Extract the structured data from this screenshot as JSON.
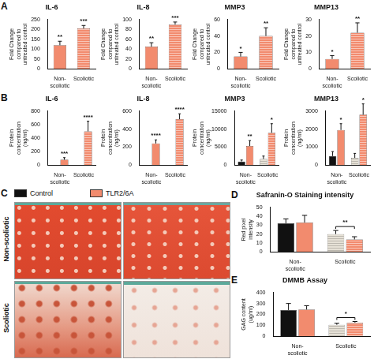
{
  "panel_labels": [
    "A",
    "B",
    "C",
    "D",
    "E"
  ],
  "chart_data": [
    {
      "type": "bar",
      "title": "IL-6",
      "y_label": "Fold Change compared to untreated control",
      "categories": [
        "Non-scoliotic",
        "Scoliotic"
      ],
      "values": [
        120,
        205
      ],
      "errors": [
        20,
        15
      ],
      "annotations": [
        "**",
        "***"
      ],
      "color": "#f28b6e",
      "ylim": [
        0,
        250
      ],
      "yticks": [
        0,
        50,
        100,
        150,
        200,
        250
      ],
      "grid": false
    },
    {
      "type": "bar",
      "title": "IL-8",
      "y_label": "Fold Change compared to untreated control",
      "categories": [
        "Non-scoliotic",
        "Scoliotic"
      ],
      "values": [
        45,
        90
      ],
      "errors": [
        8,
        5
      ],
      "annotations": [
        "**",
        "***"
      ],
      "color": "#f28b6e",
      "ylim": [
        0,
        100
      ],
      "yticks": [
        0,
        20,
        40,
        60,
        80,
        100
      ],
      "grid": false
    },
    {
      "type": "bar",
      "title": "MMP3",
      "y_label": "Fold Change compared to untreated control",
      "categories": [
        "Non-scoliotic",
        "Scoliotic"
      ],
      "values": [
        15,
        40
      ],
      "errors": [
        5,
        10
      ],
      "annotations": [
        "*",
        "**"
      ],
      "color": "#f28b6e",
      "ylim": [
        0,
        60
      ],
      "yticks": [
        0,
        20,
        40,
        60
      ],
      "grid": false
    },
    {
      "type": "bar",
      "title": "MMP13",
      "y_label": "Fold Change compared to untreated control",
      "categories": [
        "Non-scoliotic",
        "Scoliotic"
      ],
      "values": [
        6,
        22
      ],
      "errors": [
        2,
        6
      ],
      "annotations": [
        "*",
        "**"
      ],
      "color": "#f28b6e",
      "ylim": [
        0,
        30
      ],
      "yticks": [
        0,
        10,
        20,
        30
      ],
      "grid": false
    },
    {
      "type": "bar",
      "title": "IL-6",
      "y_label": "Protein concentration (ng/ml)",
      "categories": [
        "Non-scoliotic",
        "Scoliotic"
      ],
      "series": [
        {
          "name": "Control",
          "colors": [
            "#111111",
            "#e6e1d6"
          ],
          "values": [
            0,
            0
          ],
          "errors": [
            0,
            0
          ],
          "annotations": [
            null,
            null
          ]
        },
        {
          "name": "TLR2/6A",
          "colors": [
            "#f28b6e",
            "#f28b6e"
          ],
          "values": [
            80,
            500
          ],
          "errors": [
            30,
            150
          ],
          "annotations": [
            "***",
            "****"
          ]
        }
      ],
      "ylim": [
        0,
        800
      ],
      "yticks": [
        0,
        200,
        400,
        600,
        800
      ],
      "grid": false
    },
    {
      "type": "bar",
      "title": "IL-8",
      "y_label": "Protein concentration (ng/ml)",
      "categories": [
        "Non-scoliotic",
        "Scoliotic"
      ],
      "series": [
        {
          "name": "Control",
          "colors": [
            "#111111",
            "#e6e1d6"
          ],
          "values": [
            0,
            0
          ],
          "errors": [
            0,
            0
          ],
          "annotations": [
            null,
            null
          ]
        },
        {
          "name": "TLR2/6A",
          "colors": [
            "#f28b6e",
            "#f28b6e"
          ],
          "values": [
            240,
            510
          ],
          "errors": [
            40,
            60
          ],
          "annotations": [
            "****",
            "****"
          ]
        }
      ],
      "ylim": [
        0,
        600
      ],
      "yticks": [
        0,
        200,
        400,
        600
      ],
      "grid": false
    },
    {
      "type": "bar",
      "title": "MMP3",
      "y_label": "Protein concentration (ng/ml)",
      "categories": [
        "Non-scoliotic",
        "Scoliotic"
      ],
      "series": [
        {
          "name": "Control",
          "colors": [
            "#111111",
            "#e6e1d6"
          ],
          "values": [
            1000,
            1700
          ],
          "errors": [
            400,
            800
          ],
          "annotations": [
            null,
            null
          ]
        },
        {
          "name": "TLR2/6A",
          "colors": [
            "#f28b6e",
            "#f28b6e"
          ],
          "values": [
            5300,
            9000
          ],
          "errors": [
            1500,
            2500
          ],
          "annotations": [
            "**",
            "*"
          ]
        }
      ],
      "ylim": [
        0,
        15000
      ],
      "yticks": [
        0,
        5000,
        10000,
        15000
      ],
      "grid": false
    },
    {
      "type": "bar",
      "title": "MMP13",
      "y_label": "Protein concentration (ng/ml)",
      "categories": [
        "Non-scoliotic",
        "Scoliotic"
      ],
      "series": [
        {
          "name": "Control",
          "colors": [
            "#111111",
            "#e6e1d6"
          ],
          "values": [
            500,
            400
          ],
          "errors": [
            250,
            250
          ],
          "annotations": [
            null,
            null
          ]
        },
        {
          "name": "TLR2/6A",
          "colors": [
            "#f28b6e",
            "#f28b6e"
          ],
          "values": [
            1950,
            2800
          ],
          "errors": [
            350,
            600
          ],
          "annotations": [
            "*",
            "*"
          ]
        }
      ],
      "ylim": [
        0,
        3000
      ],
      "yticks": [
        0,
        1000,
        2000,
        3000
      ],
      "grid": false
    },
    {
      "type": "bar",
      "title": "Safranin-O Staining intensity",
      "y_label": "Red pixel intensity",
      "categories": [
        "Non-scoliotic",
        "Scoliotic"
      ],
      "series": [
        {
          "name": "Control",
          "colors": [
            "#111111",
            "#e6e1d6"
          ],
          "values": [
            32,
            20
          ],
          "errors": [
            5,
            4
          ]
        },
        {
          "name": "TLR2/6A",
          "colors": [
            "#f28b6e",
            "#f28b6e"
          ],
          "values": [
            33,
            14
          ],
          "errors": [
            8,
            3
          ]
        }
      ],
      "comparisons": [
        {
          "category": "Scoliotic",
          "label": "**"
        }
      ],
      "ylim": [
        0,
        50
      ],
      "yticks": [
        0,
        10,
        20,
        30,
        40,
        50
      ],
      "grid": false
    },
    {
      "type": "bar",
      "title": "DMMB Assay",
      "y_label": "GAG content (ug/ml)",
      "categories": [
        "Non-scoliotic",
        "Scoliotic"
      ],
      "series": [
        {
          "name": "Control",
          "colors": [
            "#111111",
            "#e6e1d6"
          ],
          "values": [
            240,
            105
          ],
          "errors": [
            60,
            15
          ]
        },
        {
          "name": "TLR2/6A",
          "colors": [
            "#f28b6e",
            "#f28b6e"
          ],
          "values": [
            245,
            125
          ],
          "errors": [
            35,
            10
          ]
        }
      ],
      "comparisons": [
        {
          "category": "Scoliotic",
          "label": "*"
        }
      ],
      "ylim": [
        0,
        400
      ],
      "yticks": [
        0,
        100,
        200,
        300,
        400
      ],
      "grid": false
    }
  ],
  "image_panel": {
    "legend": [
      {
        "name": "Control",
        "color": "#111111"
      },
      {
        "name": "TLR2/6A",
        "color": "#f28b6e"
      }
    ],
    "rows": [
      "Non-scoliotic",
      "Scoliotic"
    ]
  }
}
